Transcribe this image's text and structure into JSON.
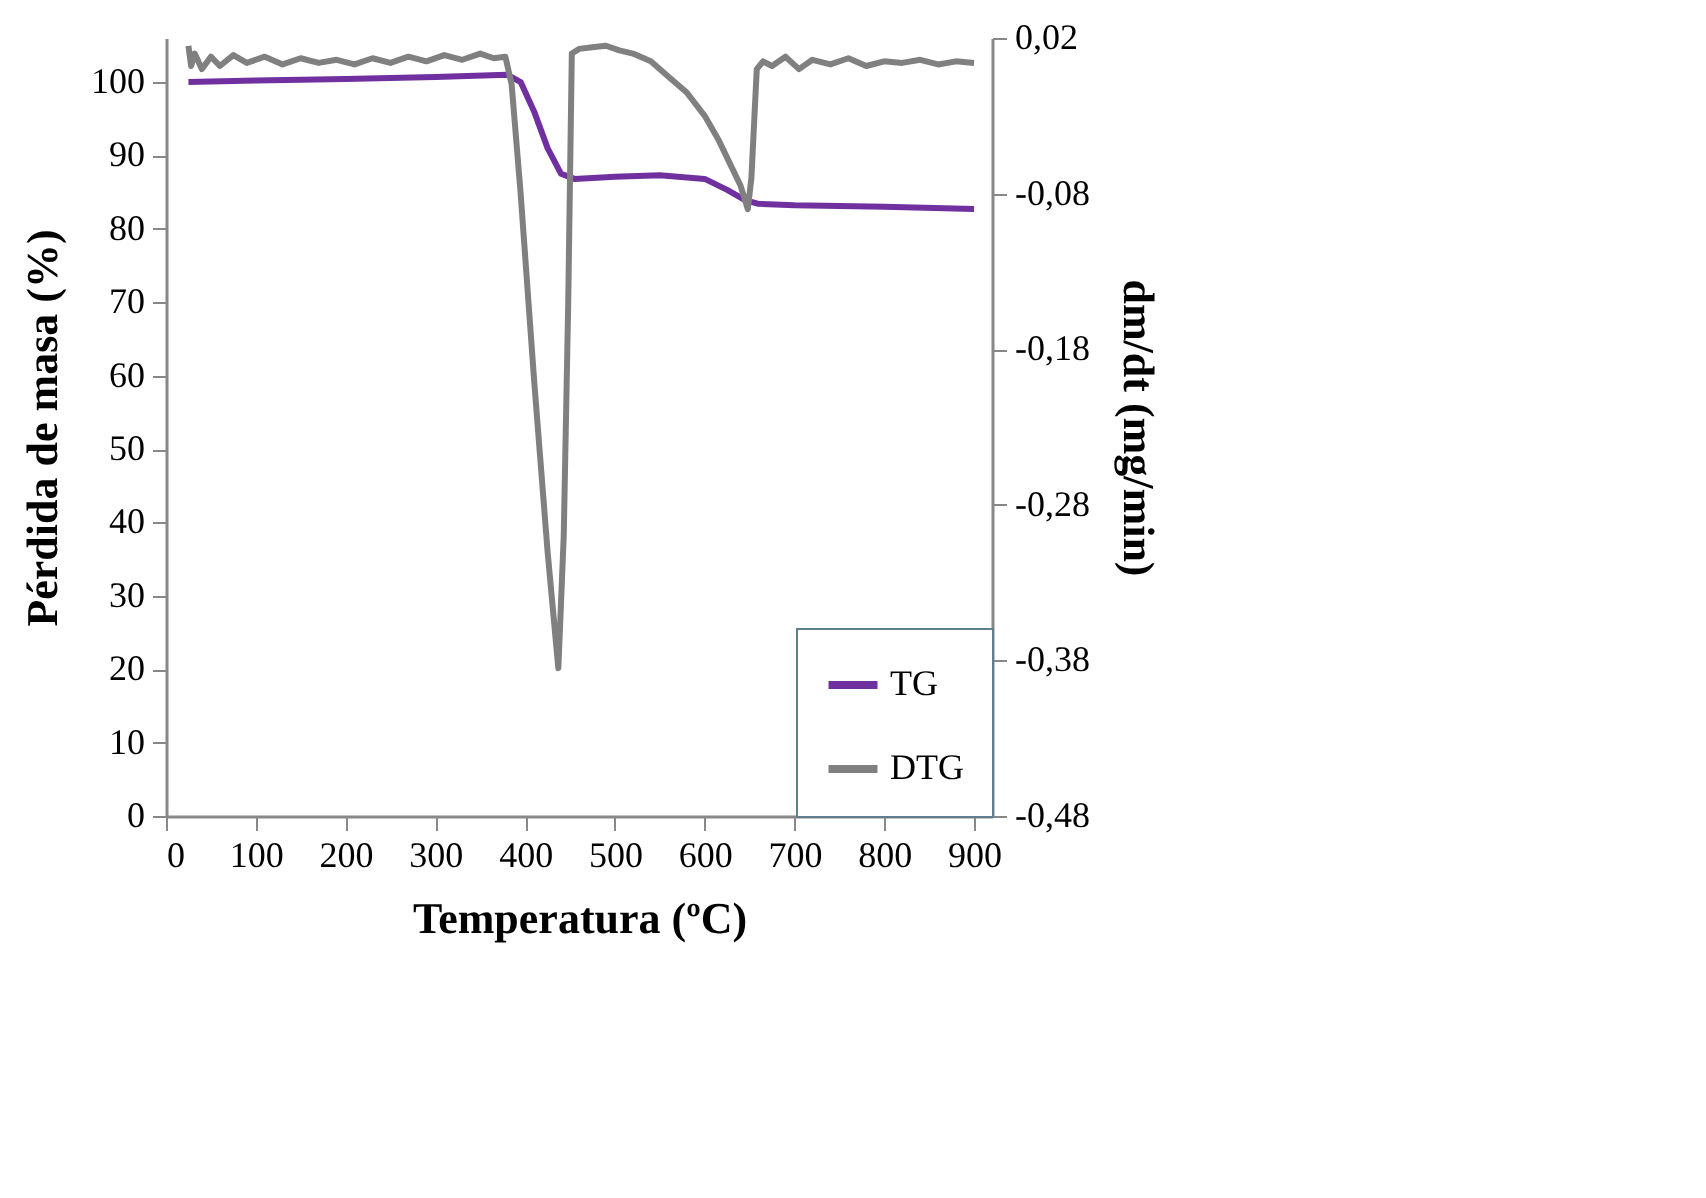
{
  "chart_data": {
    "type": "line",
    "xlabel": "Temperatura (ºC)",
    "ylabel": "Pérdida de masa (%)",
    "y2label": "dm/dt (mg/min)",
    "xlim": [
      0,
      920
    ],
    "xticks": [
      0,
      100,
      200,
      300,
      400,
      500,
      600,
      700,
      800,
      900
    ],
    "ylim": [
      0,
      106
    ],
    "yticks": [
      0,
      10,
      20,
      30,
      40,
      50,
      60,
      70,
      80,
      90,
      100
    ],
    "y2lim": [
      -0.48,
      0.02
    ],
    "y2ticks": [
      {
        "value": 0.02,
        "label": "0,02"
      },
      {
        "value": -0.08,
        "label": "-0,08"
      },
      {
        "value": -0.18,
        "label": "-0,18"
      },
      {
        "value": -0.28,
        "label": "-0,28"
      },
      {
        "value": -0.38,
        "label": "-0,38"
      },
      {
        "value": -0.48,
        "label": "-0,48"
      }
    ],
    "grid": false,
    "legend": "bottom right",
    "line_style": "solid",
    "marker": "none",
    "series": [
      {
        "name": "TG",
        "color": "#7030a0",
        "x": [
          25,
          100,
          200,
          300,
          380,
          395,
          410,
          425,
          440,
          455,
          500,
          550,
          600,
          625,
          645,
          660,
          700,
          800,
          900
        ],
        "values": [
          100,
          100.2,
          100.4,
          100.7,
          101,
          100,
          96,
          91,
          87.5,
          86.8,
          87.1,
          87.3,
          86.8,
          85.3,
          83.9,
          83.4,
          83.2,
          83,
          82.7
        ]
      },
      {
        "name": "DTG",
        "color": "#808080",
        "axis": "y2",
        "x": [
          25,
          28,
          32,
          40,
          50,
          60,
          75,
          90,
          110,
          130,
          150,
          170,
          190,
          210,
          230,
          250,
          270,
          290,
          310,
          330,
          350,
          365,
          378,
          385,
          395,
          410,
          425,
          437,
          443,
          448,
          452,
          460,
          475,
          490,
          505,
          520,
          540,
          560,
          580,
          600,
          615,
          630,
          640,
          648,
          652,
          658,
          665,
          675,
          690,
          705,
          720,
          740,
          760,
          780,
          800,
          820,
          840,
          860,
          880,
          900
        ],
        "values": [
          0.015,
          0.002,
          0.01,
          0.0,
          0.008,
          0.002,
          0.009,
          0.004,
          0.008,
          0.003,
          0.007,
          0.004,
          0.006,
          0.003,
          0.007,
          0.004,
          0.008,
          0.005,
          0.009,
          0.006,
          0.01,
          0.007,
          0.008,
          -0.01,
          -0.08,
          -0.2,
          -0.31,
          -0.385,
          -0.3,
          -0.15,
          0.01,
          0.013,
          0.014,
          0.015,
          0.012,
          0.01,
          0.005,
          -0.005,
          -0.015,
          -0.03,
          -0.045,
          -0.063,
          -0.075,
          -0.09,
          -0.07,
          0.0,
          0.005,
          0.002,
          0.008,
          0.0,
          0.006,
          0.003,
          0.007,
          0.002,
          0.005,
          0.004,
          0.006,
          0.003,
          0.005,
          0.004
        ]
      }
    ]
  }
}
